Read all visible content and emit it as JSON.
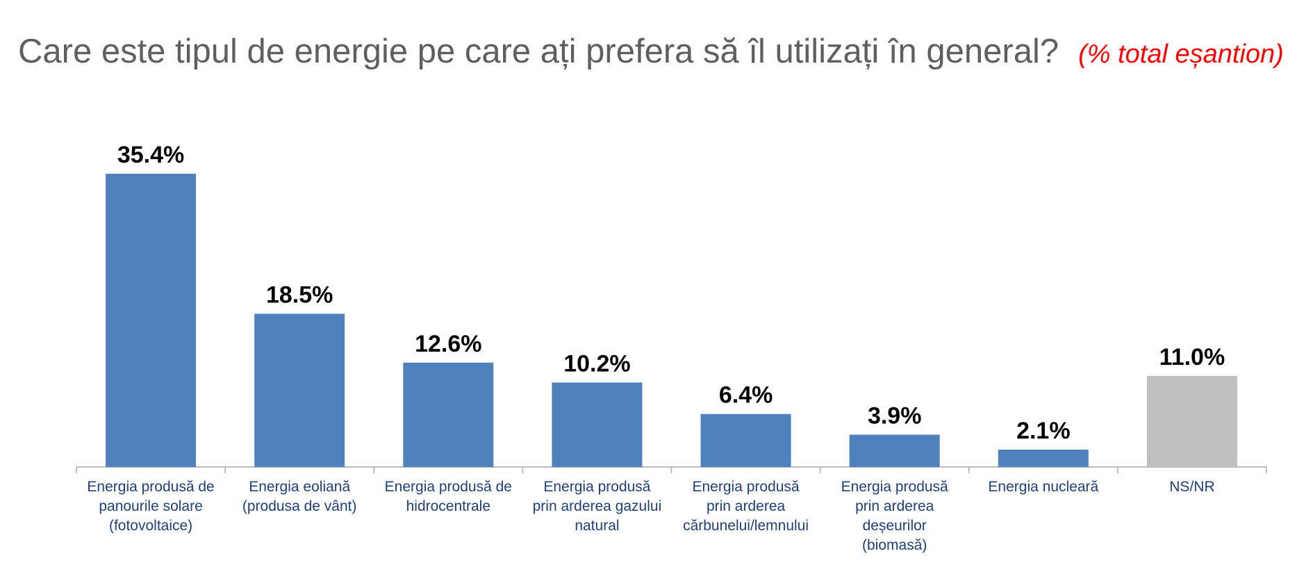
{
  "chart_data": {
    "type": "bar",
    "title": "Care este tipul de energie pe care ați prefera să îl utilizați în general?",
    "subtitle": "(% total eșantion)",
    "categories": [
      [
        "Energia produsă de",
        "panourile solare",
        "(fotovoltaice)"
      ],
      [
        "Energia eoliană",
        "(produsa de vânt)"
      ],
      [
        "Energia produsă de",
        "hidrocentrale"
      ],
      [
        "Energia produsă",
        "prin arderea gazului",
        "natural"
      ],
      [
        "Energia produsă",
        "prin arderea",
        "cărbunelui/lemnului"
      ],
      [
        "Energia produsă",
        "prin arderea",
        "deșeurilor",
        "(biomasă)"
      ],
      [
        "Energia nucleară"
      ],
      [
        "NS/NR"
      ]
    ],
    "values": [
      35.4,
      18.5,
      12.6,
      10.2,
      6.4,
      3.9,
      2.1,
      11.0
    ],
    "value_labels": [
      "35.4%",
      "18.5%",
      "12.6%",
      "10.2%",
      "6.4%",
      "3.9%",
      "2.1%",
      "11.0%"
    ],
    "colors": [
      "#4f81bd",
      "#4f81bd",
      "#4f81bd",
      "#4f81bd",
      "#4f81bd",
      "#4f81bd",
      "#4f81bd",
      "#bfbfbf"
    ],
    "category_label_color": "#1f3f7a",
    "axis_color": "#a6a6a6",
    "ylim": [
      0,
      40
    ],
    "grid": false,
    "legend": "none"
  }
}
